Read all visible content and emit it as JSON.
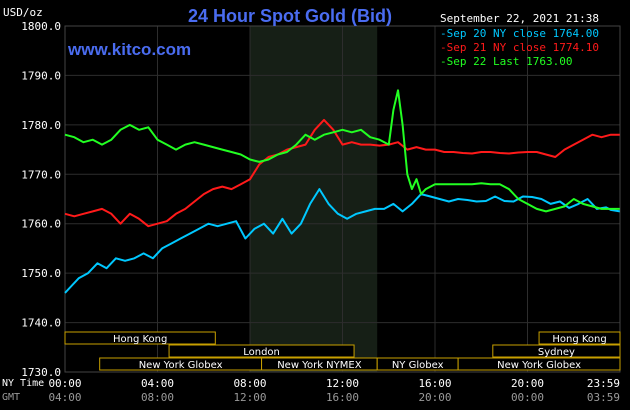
{
  "title": "24 Hour Spot Gold (Bid)",
  "brand": "www.kitco.com",
  "datetime": "September 22, 2021 21:38",
  "unit": "USD/oz",
  "legend": [
    {
      "label": "Sep 20 NY close 1764.00",
      "color": "#00c8ff"
    },
    {
      "label": "Sep 21 NY close 1774.10",
      "color": "#ff1a1a"
    },
    {
      "label": "Sep 22 Last 1763.00",
      "color": "#22ff22"
    }
  ],
  "time_rows": [
    {
      "label": "NY Time",
      "ticks": [
        "00:00",
        "04:00",
        "08:00",
        "12:00",
        "16:00",
        "20:00",
        "23:59"
      ]
    },
    {
      "label": "GMT",
      "ticks": [
        "04:00",
        "08:00",
        "12:00",
        "16:00",
        "20:00",
        "00:00",
        "03:59"
      ]
    }
  ],
  "sessions": [
    {
      "label": "Hong Kong",
      "row": 0
    },
    {
      "label": "London",
      "row": 1
    },
    {
      "label": "New York Globex",
      "row": 2
    },
    {
      "label": "New York NYMEX",
      "row": 2
    },
    {
      "label": "NY Globex",
      "row": 2
    },
    {
      "label": "Hong Kong",
      "row": 0
    },
    {
      "label": "Sydney",
      "row": 1
    },
    {
      "label": "New York Globex",
      "row": 2
    }
  ],
  "chart_data": {
    "type": "line",
    "title": "24 Hour Spot Gold (Bid)",
    "ylabel": "USD/oz",
    "ylim": [
      1730,
      1800
    ],
    "yticks": [
      "1730.0",
      "1740.0",
      "1750.0",
      "1760.0",
      "1770.0",
      "1780.0",
      "1790.0",
      "1800.0"
    ],
    "xlim": [
      0,
      24
    ],
    "xticks": [
      "00:00",
      "04:00",
      "08:00",
      "12:00",
      "16:00",
      "20:00",
      "23:59"
    ],
    "grid": true,
    "highlight_band_hours": [
      8.0,
      13.5
    ],
    "series": [
      {
        "name": "Sep 20 NY close 1764.00",
        "color": "#00c8ff",
        "x": [
          0,
          0.3,
          0.6,
          1,
          1.4,
          1.8,
          2.2,
          2.6,
          3,
          3.4,
          3.8,
          4.2,
          4.6,
          5,
          5.4,
          5.8,
          6.2,
          6.6,
          7,
          7.4,
          7.8,
          8.2,
          8.6,
          9,
          9.4,
          9.8,
          10.2,
          10.6,
          11,
          11.4,
          11.8,
          12.2,
          12.6,
          13,
          13.4,
          13.8,
          14.2,
          14.6,
          15,
          15.4,
          15.8,
          16.2,
          16.6,
          17,
          17.4,
          17.8,
          18.2,
          18.6,
          19,
          19.4,
          19.8,
          20.2,
          20.6,
          21,
          21.4,
          21.8,
          22.2,
          22.6,
          23,
          23.4,
          23.6,
          23.99
        ],
        "y": [
          1746,
          1747.5,
          1749,
          1750,
          1752,
          1751,
          1753,
          1752.5,
          1753,
          1754,
          1753,
          1755,
          1756,
          1757,
          1758,
          1759,
          1760,
          1759.5,
          1760,
          1760.5,
          1757,
          1759,
          1760,
          1758,
          1761,
          1758,
          1760,
          1764,
          1767,
          1764,
          1762,
          1761,
          1762,
          1762.5,
          1763,
          1763,
          1764,
          1762.5,
          1764,
          1766,
          1765.5,
          1765,
          1764.5,
          1765,
          1764.8,
          1764.5,
          1764.6,
          1765.5,
          1764.6,
          1764.5,
          1765.5,
          1765.4,
          1765,
          1764,
          1764.5,
          1763.2,
          1764,
          1765,
          1763,
          1763.3,
          1762.8,
          1762.5
        ]
      },
      {
        "name": "Sep 21 NY close 1774.10",
        "color": "#ff1a1a",
        "x": [
          0,
          0.4,
          0.8,
          1.2,
          1.6,
          2,
          2.4,
          2.8,
          3.2,
          3.6,
          4,
          4.4,
          4.8,
          5.2,
          5.6,
          6,
          6.4,
          6.8,
          7.2,
          7.6,
          8,
          8.4,
          8.8,
          9.2,
          9.6,
          10,
          10.4,
          10.8,
          11.2,
          11.6,
          12,
          12.4,
          12.8,
          13.2,
          13.6,
          14,
          14.4,
          14.8,
          15.2,
          15.6,
          16,
          16.4,
          16.8,
          17.2,
          17.6,
          18,
          18.4,
          18.8,
          19.2,
          19.6,
          20,
          20.4,
          20.8,
          21.2,
          21.6,
          22,
          22.4,
          22.8,
          23.2,
          23.6,
          23.99
        ],
        "y": [
          1762,
          1761.5,
          1762,
          1762.5,
          1763,
          1762,
          1760,
          1762,
          1761,
          1759.5,
          1760,
          1760.5,
          1762,
          1763,
          1764.5,
          1766,
          1767,
          1767.5,
          1767,
          1768,
          1769,
          1772,
          1773.5,
          1774,
          1775,
          1775.5,
          1776,
          1779,
          1781,
          1779,
          1776,
          1776.5,
          1776,
          1776,
          1775.8,
          1776,
          1776.5,
          1775,
          1775.5,
          1775,
          1775,
          1774.5,
          1774.5,
          1774.3,
          1774.2,
          1774.5,
          1774.5,
          1774.3,
          1774.2,
          1774.4,
          1774.5,
          1774.5,
          1774,
          1773.5,
          1775,
          1776,
          1777,
          1778,
          1777.5,
          1778,
          1778
        ]
      },
      {
        "name": "Sep 22 Last 1763.00",
        "color": "#22ff22",
        "x": [
          0,
          0.4,
          0.8,
          1.2,
          1.6,
          2,
          2.4,
          2.8,
          3.2,
          3.6,
          4,
          4.4,
          4.8,
          5.2,
          5.6,
          6,
          6.4,
          6.8,
          7.2,
          7.6,
          8,
          8.4,
          8.8,
          9.2,
          9.6,
          10,
          10.4,
          10.8,
          11.2,
          11.6,
          12,
          12.4,
          12.8,
          13.2,
          13.6,
          14,
          14.2,
          14.4,
          14.6,
          14.8,
          15,
          15.2,
          15.4,
          15.6,
          16,
          16.4,
          16.8,
          17.2,
          17.6,
          18,
          18.4,
          18.8,
          19.2,
          19.6,
          20,
          20.4,
          20.8,
          21.2,
          21.6,
          22,
          22.4,
          22.8,
          23.2,
          23.6,
          23.99
        ],
        "y": [
          1778,
          1777.5,
          1776.5,
          1777,
          1776,
          1777,
          1779,
          1780,
          1779,
          1779.5,
          1777,
          1776,
          1775,
          1776,
          1776.5,
          1776,
          1775.5,
          1775,
          1774.5,
          1774,
          1773,
          1772.5,
          1773,
          1774,
          1774.5,
          1776,
          1778,
          1777,
          1778,
          1778.5,
          1779,
          1778.5,
          1779,
          1777.5,
          1777,
          1776,
          1783,
          1787,
          1780,
          1770,
          1767,
          1769,
          1766,
          1767,
          1768,
          1768,
          1768,
          1768,
          1768,
          1768.2,
          1768,
          1768,
          1767,
          1765,
          1764,
          1763,
          1762.5,
          1763,
          1763.5,
          1765,
          1764,
          1763.5,
          1763,
          1763,
          1763
        ]
      }
    ]
  }
}
